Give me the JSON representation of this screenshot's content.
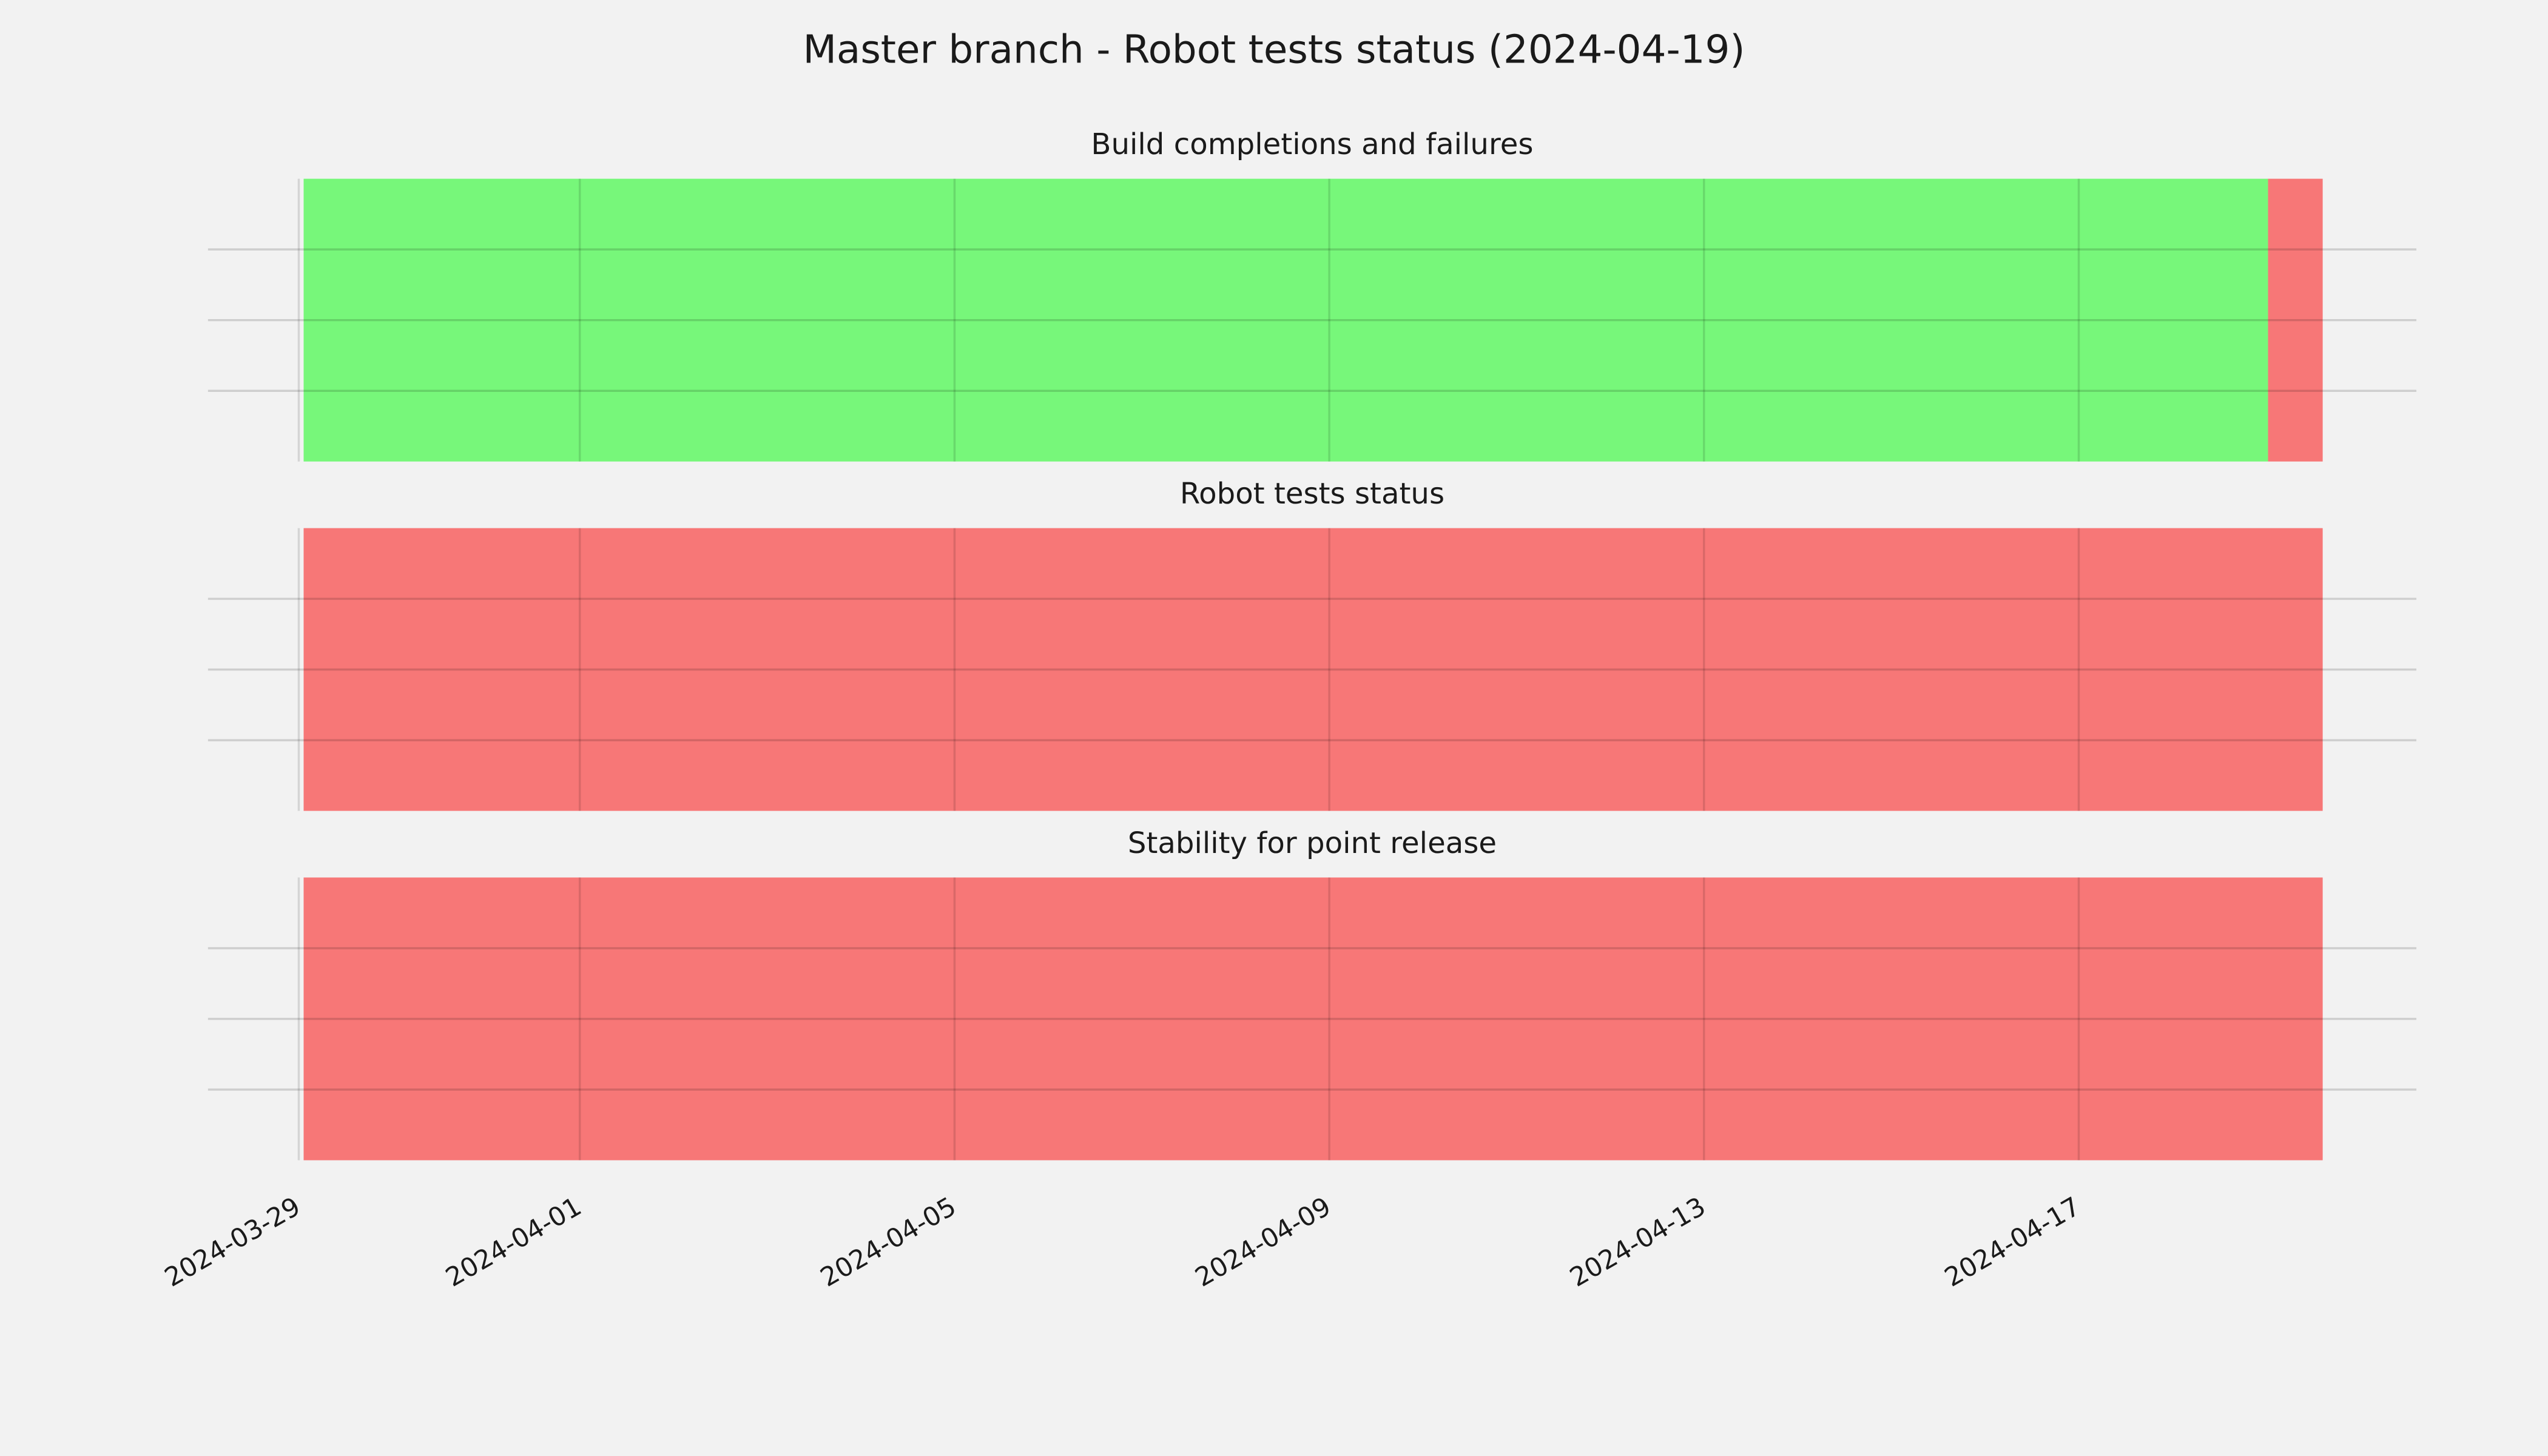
{
  "title": "Master branch - Robot tests status (2024-04-19)",
  "chart_data": [
    {
      "type": "timeline",
      "title": "Build completions and failures",
      "segments": [
        {
          "start": "2024-03-29T01:15",
          "end": "2024-04-19T00:30",
          "color": "#77f77a"
        },
        {
          "start": "2024-04-19T00:30",
          "end": "2024-04-19T14:30",
          "color": "#f77777"
        }
      ],
      "xlim": [
        "2024-03-28T00:45",
        "2024-04-20T14:30"
      ],
      "xticks": [
        "2024-03-29",
        "2024-04-01",
        "2024-04-05",
        "2024-04-09",
        "2024-04-13",
        "2024-04-17"
      ],
      "xtick_labels": false,
      "ylim": [
        0,
        1
      ],
      "yticks": [
        0.25,
        0.5,
        0.75
      ],
      "grid": true
    },
    {
      "type": "timeline",
      "title": "Robot tests status",
      "segments": [
        {
          "start": "2024-03-29T01:15",
          "end": "2024-04-19T14:30",
          "color": "#f77777"
        }
      ],
      "xlim": [
        "2024-03-28T00:45",
        "2024-04-20T14:30"
      ],
      "xticks": [
        "2024-03-29",
        "2024-04-01",
        "2024-04-05",
        "2024-04-09",
        "2024-04-13",
        "2024-04-17"
      ],
      "xtick_labels": false,
      "ylim": [
        0,
        1
      ],
      "yticks": [
        0.25,
        0.5,
        0.75
      ],
      "grid": true
    },
    {
      "type": "timeline",
      "title": "Stability for point release",
      "segments": [
        {
          "start": "2024-03-29T01:15",
          "end": "2024-04-19T14:30",
          "color": "#f77777"
        }
      ],
      "xlim": [
        "2024-03-28T00:45",
        "2024-04-20T14:30"
      ],
      "xticks": [
        "2024-03-29",
        "2024-04-01",
        "2024-04-05",
        "2024-04-09",
        "2024-04-13",
        "2024-04-17"
      ],
      "xtick_labels": true,
      "ylim": [
        0,
        1
      ],
      "yticks": [
        0.25,
        0.5,
        0.75
      ],
      "grid": true
    }
  ]
}
